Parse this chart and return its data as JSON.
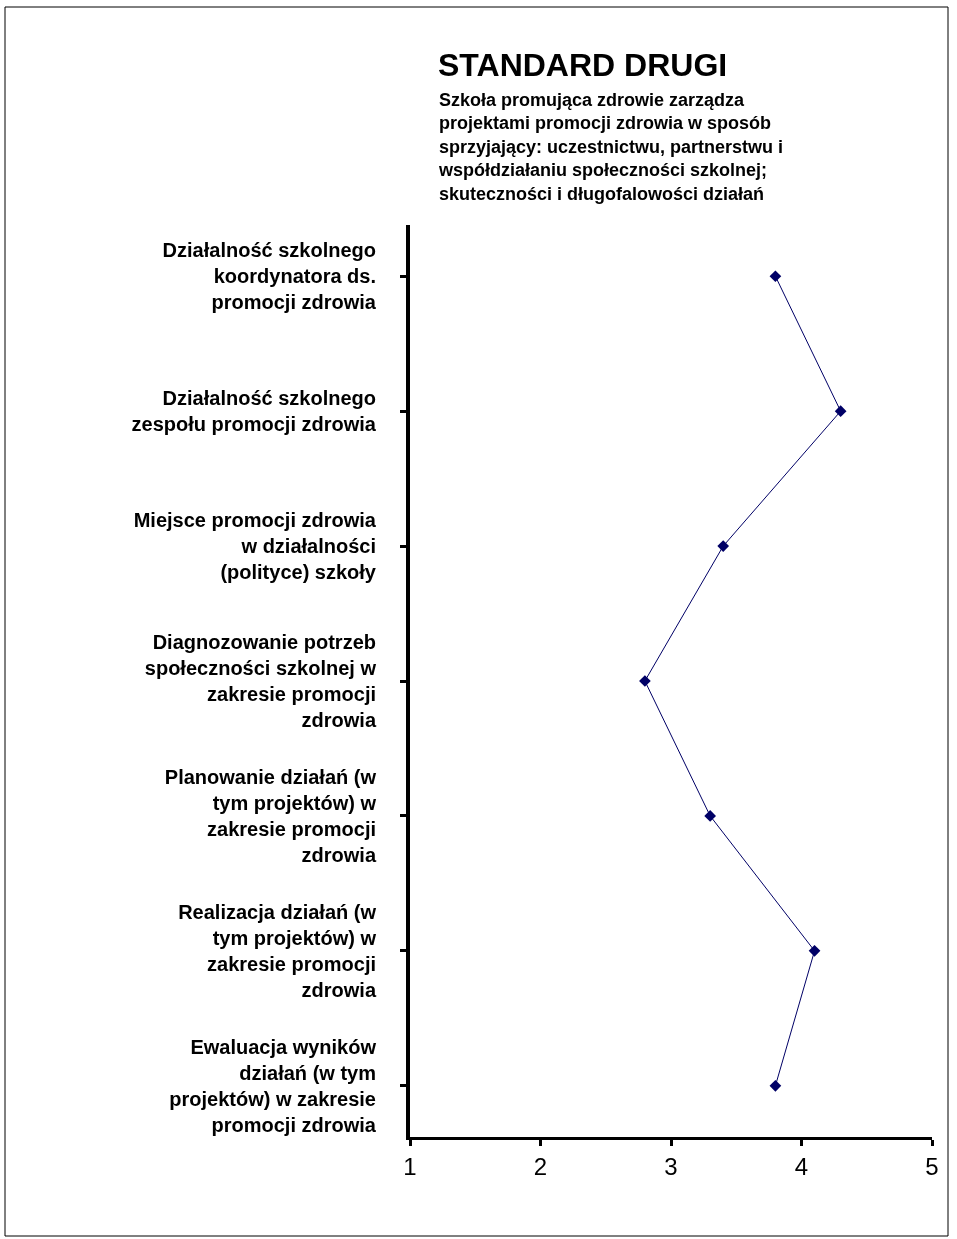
{
  "chart_data": {
    "type": "line",
    "orientation": "horizontal",
    "title": "STANDARD DRUGI",
    "subtitle": "Szkoła promująca zdrowie zarządza projektami promocji zdrowia w sposób sprzyjający: uczestnictwu, partnerstwu i współdziałaniu społeczności szkolnej; skuteczności i długofalowości działań",
    "categories": [
      "Działalność szkolnego koordynatora ds. promocji zdrowia",
      "Działalność szkolnego zespołu promocji zdrowia",
      "Miejsce promocji zdrowia w działalności (polityce) szkoły",
      "Diagnozowanie potrzeb społeczności szkolnej w zakresie promocji zdrowia",
      "Planowanie działań (w tym projektów) w zakresie promocji zdrowia",
      "Realizacja działań (w tym projektów) w zakresie promocji zdrowia",
      "Ewaluacja wyników działań (w tym projektów) w zakresie promocji zdrowia"
    ],
    "values": [
      3.8,
      4.3,
      3.4,
      2.8,
      3.3,
      4.1,
      3.8
    ],
    "color": "#000066",
    "marker": "diamond",
    "line_style": "solid",
    "xlim": [
      1,
      5
    ],
    "xticks": [
      1,
      2,
      3,
      4,
      5
    ]
  }
}
